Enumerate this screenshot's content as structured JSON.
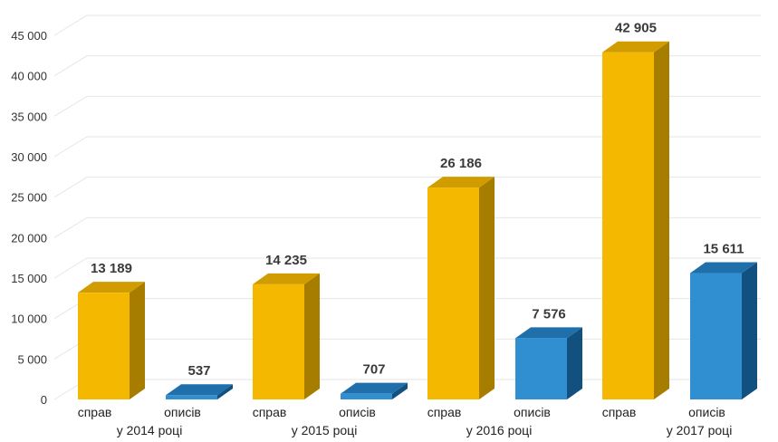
{
  "chart_data": {
    "type": "bar",
    "style": "3d-columns",
    "ylim": [
      0,
      45000
    ],
    "yticks": [
      "0",
      "5 000",
      "10 000",
      "15 000",
      "20 000",
      "25 000",
      "30 000",
      "35 000",
      "40 000",
      "45 000"
    ],
    "grid": true,
    "groups": [
      {
        "label": "у 2014 році",
        "bars": [
          {
            "label": "справ",
            "value": 13189,
            "value_label": "13 189",
            "color": "#f5b800"
          },
          {
            "label": "описів",
            "value": 537,
            "value_label": "537",
            "color": "#2f8fd0"
          }
        ]
      },
      {
        "label": "у 2015 році",
        "bars": [
          {
            "label": "справ",
            "value": 14235,
            "value_label": "14 235",
            "color": "#f5b800"
          },
          {
            "label": "описів",
            "value": 707,
            "value_label": "707",
            "color": "#2f8fd0"
          }
        ]
      },
      {
        "label": "у 2016 році",
        "bars": [
          {
            "label": "справ",
            "value": 26186,
            "value_label": "26 186",
            "color": "#f5b800"
          },
          {
            "label": "описів",
            "value": 7576,
            "value_label": "7 576",
            "color": "#2f8fd0"
          }
        ]
      },
      {
        "label": "у 2017 році",
        "bars": [
          {
            "label": "справ",
            "value": 42905,
            "value_label": "42 905",
            "color": "#f5b800"
          },
          {
            "label": "описів",
            "value": 15611,
            "value_label": "15 611",
            "color": "#2f8fd0"
          }
        ]
      }
    ]
  }
}
